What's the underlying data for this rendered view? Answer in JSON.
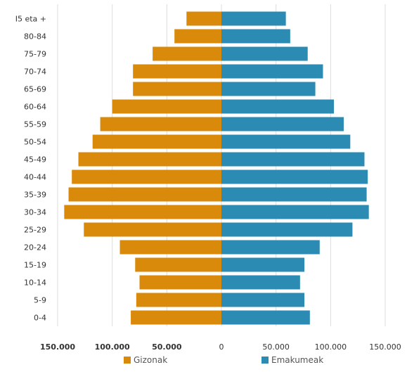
{
  "chart_data": {
    "type": "bar",
    "orientation": "horizontal",
    "categories": [
      "0-4",
      "5-9",
      "10-14",
      "15-19",
      "20-24",
      "25-29",
      "30-34",
      "35-39",
      "40-44",
      "45-49",
      "50-54",
      "55-59",
      "60-64",
      "65-69",
      "70-74",
      "75-79",
      "80-84",
      "85 eta +"
    ],
    "category_labels_shown": [
      "0-4",
      "5-9",
      "10-14",
      "15-19",
      "20-24",
      "25-29",
      "30-34",
      "35-39",
      "40-44",
      "45-49",
      "50-54",
      "55-59",
      "60-64",
      "65-69",
      "70-74",
      "75-79",
      "80-84",
      "I5 eta +"
    ],
    "series": [
      {
        "name": "Gizonak",
        "color": "#d98a0b",
        "values": [
          83000,
          78000,
          75000,
          79000,
          93000,
          126000,
          144000,
          140000,
          137000,
          131000,
          118000,
          111000,
          100000,
          81000,
          81000,
          63000,
          43000,
          32000
        ]
      },
      {
        "name": "Emakumeak",
        "color": "#2b8bb3",
        "values": [
          81000,
          76000,
          72000,
          76000,
          90000,
          120000,
          135000,
          133000,
          134000,
          131000,
          118000,
          112000,
          103000,
          86000,
          93000,
          79000,
          63000,
          59000
        ]
      }
    ],
    "x_ticks": [
      "150.000",
      "100.000",
      "50.000",
      "0",
      "50.000",
      "100.000",
      "150.000"
    ],
    "xlim": [
      -150000,
      150000
    ],
    "grid": "vertical",
    "legend_position": "bottom"
  }
}
